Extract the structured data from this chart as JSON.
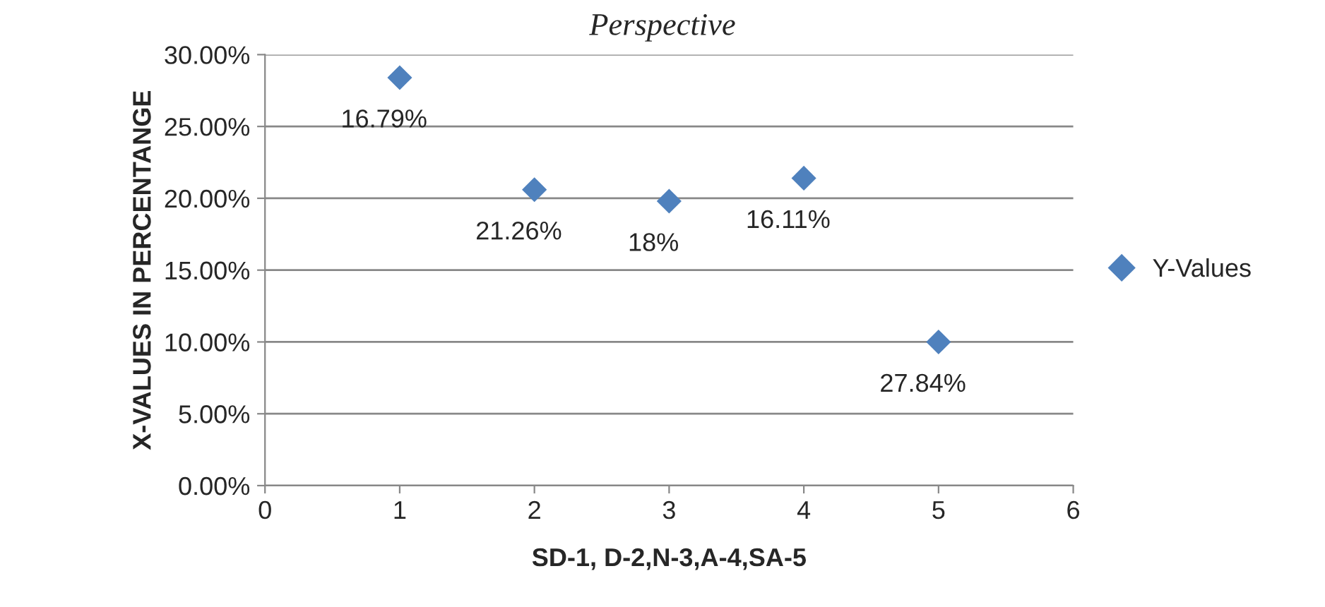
{
  "chart_data": {
    "type": "scatter",
    "title": "Perspective",
    "xlabel": "SD-1, D-2,N-3,A-4,SA-5",
    "ylabel": "X-VALUES IN PERCENTANGE",
    "series": [
      {
        "name": "Y-Values",
        "color": "#4f81bd",
        "x": [
          1,
          2,
          3,
          4,
          5
        ],
        "values": [
          28.4,
          20.6,
          19.8,
          21.4,
          10.0
        ]
      }
    ],
    "annotations": [
      {
        "text": "16.79%",
        "x": 1,
        "y": 28.4
      },
      {
        "text": "21.26%",
        "x": 2,
        "y": 20.6
      },
      {
        "text": "18%",
        "x": 3,
        "y": 19.8
      },
      {
        "text": "16.11%",
        "x": 4,
        "y": 21.4
      },
      {
        "text": "27.84%",
        "x": 5,
        "y": 10.0
      }
    ],
    "xlim": [
      0,
      6
    ],
    "xticks": [
      0,
      1,
      2,
      3,
      4,
      5,
      6
    ],
    "ylim": [
      0,
      30
    ],
    "yticks": [
      {
        "value": 0,
        "label": "0.00%"
      },
      {
        "value": 5,
        "label": "5.00%"
      },
      {
        "value": 10,
        "label": "10.00%"
      },
      {
        "value": 15,
        "label": "15.00%"
      },
      {
        "value": 20,
        "label": "20.00%"
      },
      {
        "value": 25,
        "label": "25.00%"
      },
      {
        "value": 30,
        "label": "30.00%"
      }
    ],
    "grid": "y",
    "legend": "right",
    "marker": "diamond"
  }
}
